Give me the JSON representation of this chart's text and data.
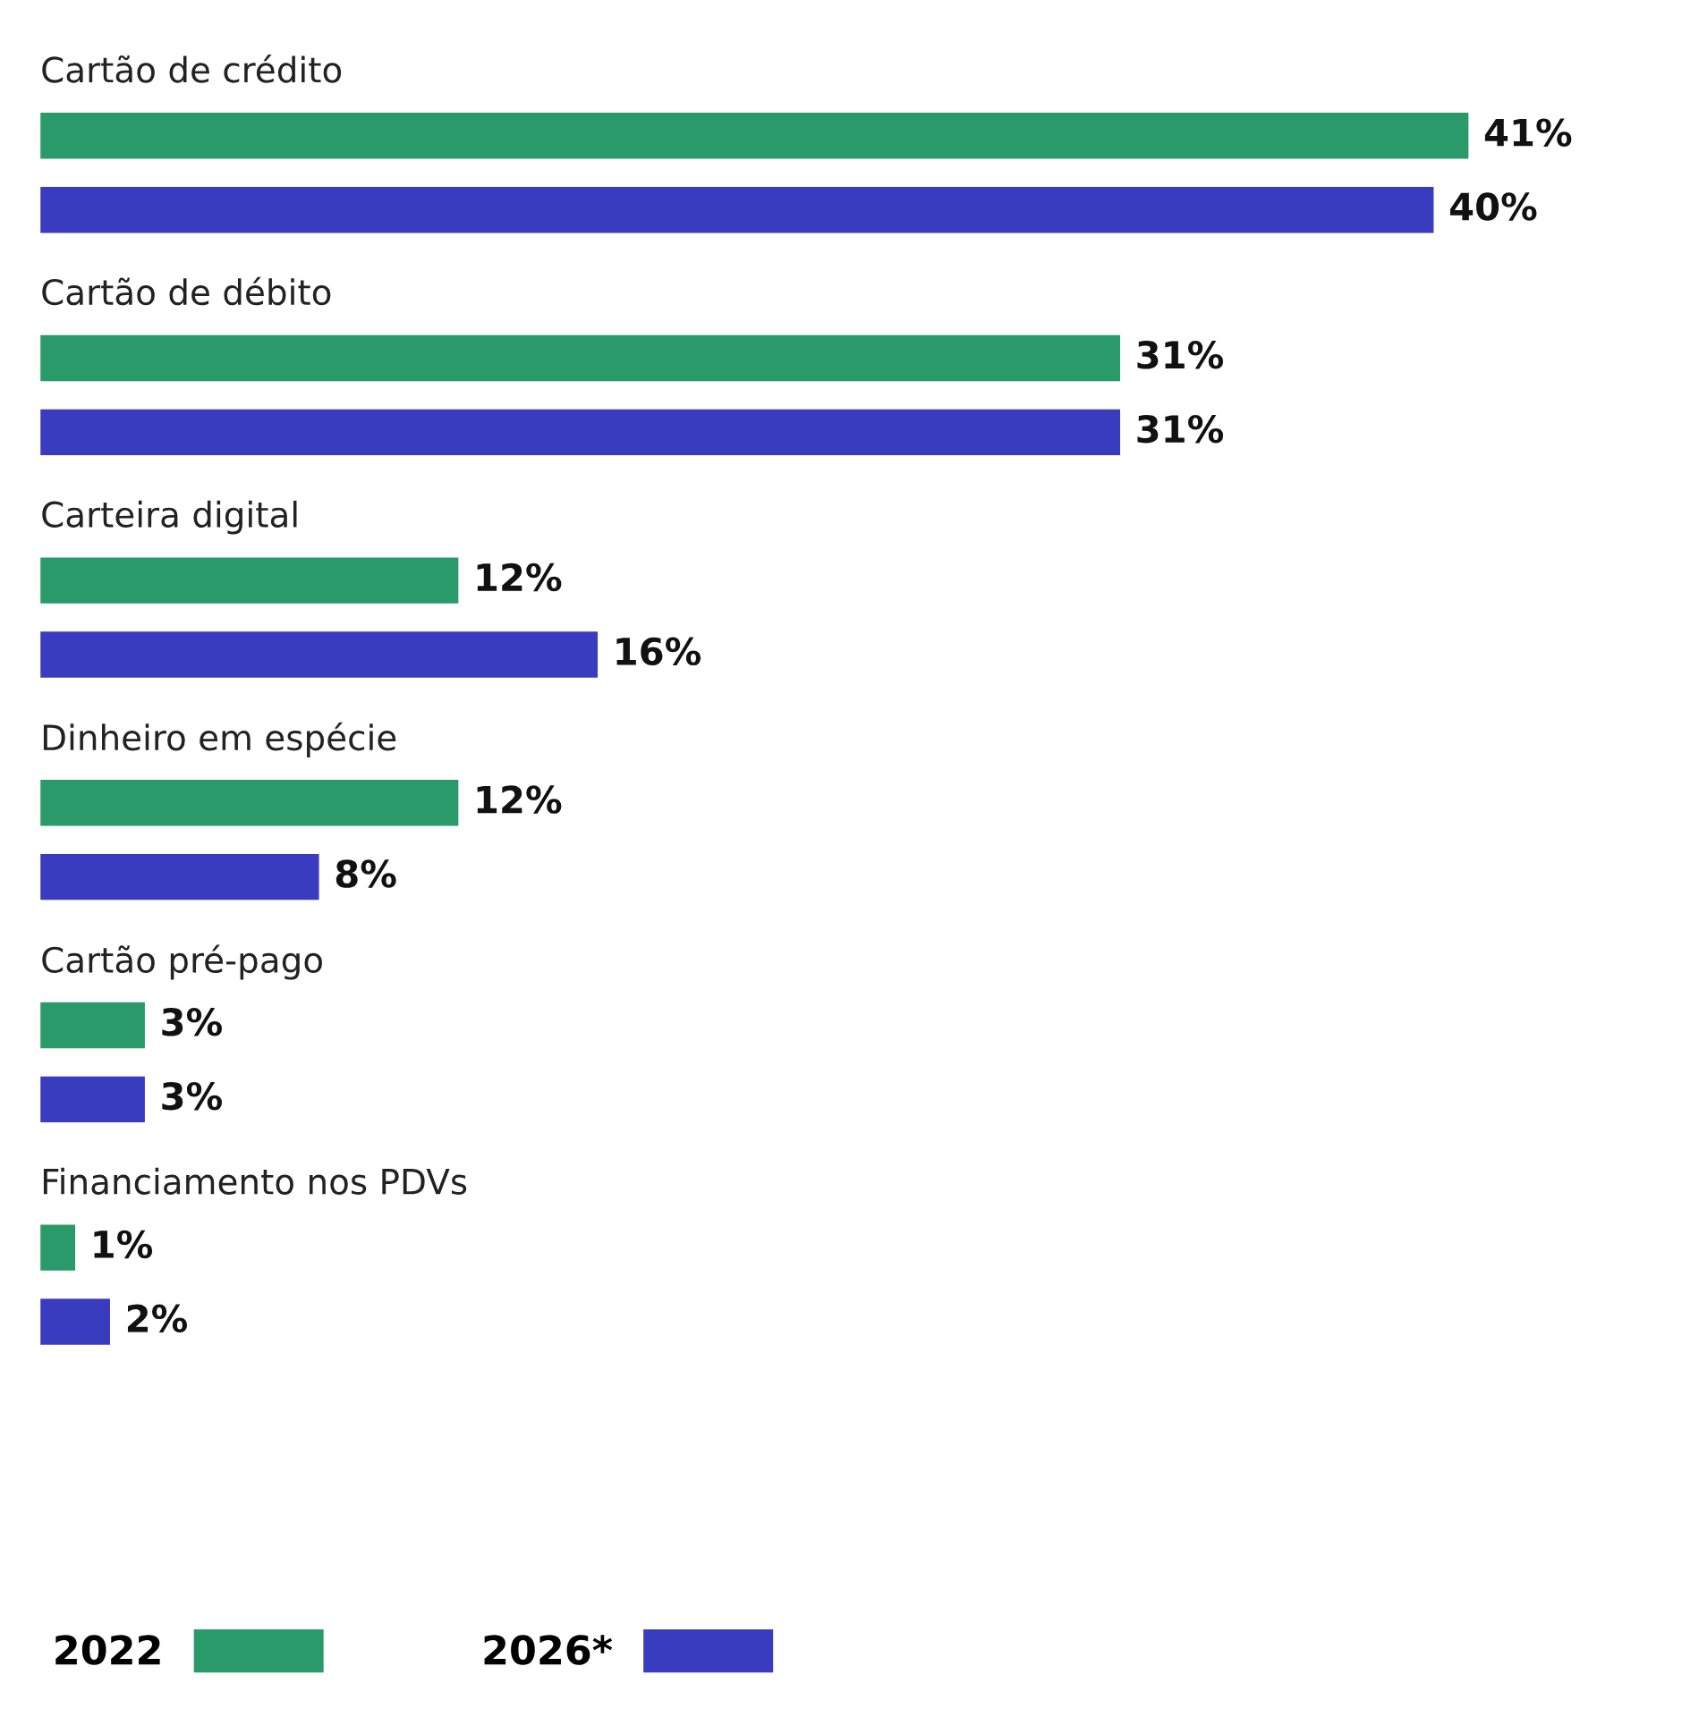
{
  "chart_data": {
    "type": "bar",
    "orientation": "horizontal",
    "categories": [
      "Cartão de crédito",
      "Cartão de débito",
      "Carteira digital",
      "Dinheiro em espécie",
      "Cartão pré-pago",
      "Financiamento nos PDVs"
    ],
    "series": [
      {
        "name": "2022",
        "color": "#2a9a6a",
        "values": [
          41,
          31,
          12,
          12,
          3,
          1
        ],
        "value_labels": [
          "41%",
          "31%",
          "12%",
          "12%",
          "3%",
          "1%"
        ]
      },
      {
        "name": "2026*",
        "color": "#3a3cc0",
        "values": [
          40,
          31,
          16,
          8,
          3,
          2
        ],
        "value_labels": [
          "40%",
          "31%",
          "16%",
          "8%",
          "3%",
          "2%"
        ]
      }
    ],
    "tick_labels": false,
    "legend": "bottom left"
  }
}
